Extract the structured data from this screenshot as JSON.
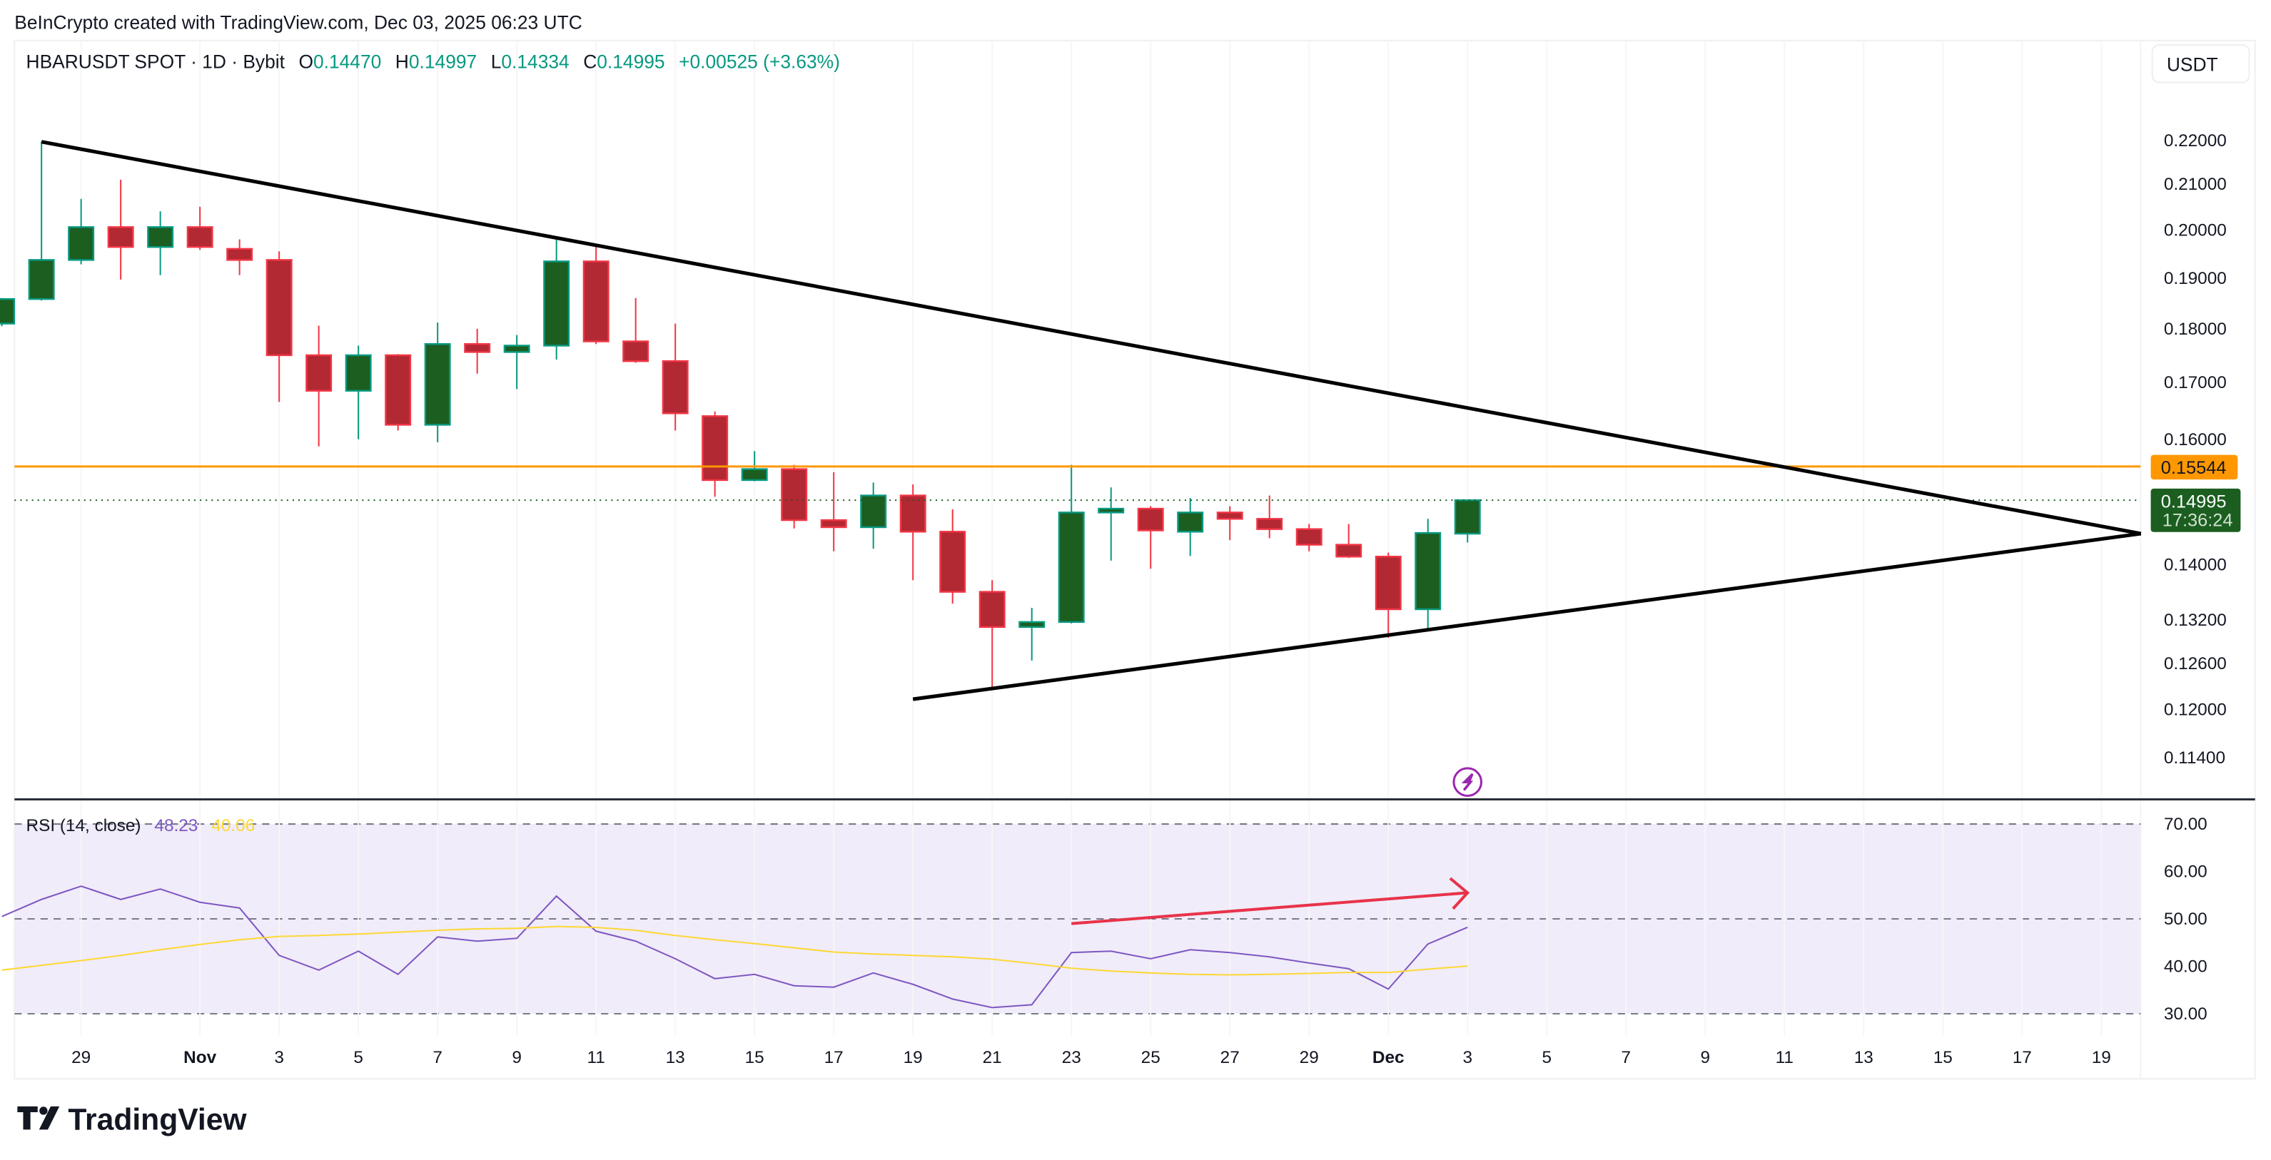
{
  "header": {
    "attribution": "BeInCrypto created with TradingView.com, Dec 03, 2025 06:23 UTC",
    "symbol": "HBARUSDT SPOT · 1D · Bybit",
    "o_label": "O",
    "o_value": "0.14470",
    "h_label": "H",
    "h_value": "0.14997",
    "l_label": "L",
    "l_value": "0.14334",
    "c_label": "C",
    "c_value": "0.14995",
    "change": "+0.00525 (+3.63%)"
  },
  "currency_button": "USDT",
  "logo_text": "TradingView",
  "colors": {
    "up_body": "#1b5e20",
    "up_border": "#089981",
    "down_body": "#b22833",
    "down_border": "#f23645",
    "resistance": "#ff9800",
    "rsi": "#7e57c2",
    "rsi_ma": "#fdd835",
    "rsi_band": "#f0ecf9",
    "arrow": "#e8334a",
    "trendline": "#000000",
    "event_icon": "#9c27b0"
  },
  "icons": {
    "event": "lightning-icon"
  },
  "chart_data": [
    {
      "type": "candlestick",
      "title": "HBARUSDT SPOT · 1D · Bybit",
      "y_scale": "log",
      "ylim": [
        0.111,
        0.238
      ],
      "y_ticks": [
        "0.22000",
        "0.21000",
        "0.20000",
        "0.19000",
        "0.18000",
        "0.17000",
        "0.16000",
        "0.14000",
        "0.13200",
        "0.12600",
        "0.12000",
        "0.11400"
      ],
      "x_ticks": [
        {
          "label": "29",
          "date": "2025-10-29"
        },
        {
          "label": "Nov",
          "date": "2025-11-01",
          "bold": true
        },
        {
          "label": "3",
          "date": "2025-11-03"
        },
        {
          "label": "5",
          "date": "2025-11-05"
        },
        {
          "label": "7",
          "date": "2025-11-07"
        },
        {
          "label": "9",
          "date": "2025-11-09"
        },
        {
          "label": "11",
          "date": "2025-11-11"
        },
        {
          "label": "13",
          "date": "2025-11-13"
        },
        {
          "label": "15",
          "date": "2025-11-15"
        },
        {
          "label": "17",
          "date": "2025-11-17"
        },
        {
          "label": "19",
          "date": "2025-11-19"
        },
        {
          "label": "21",
          "date": "2025-11-21"
        },
        {
          "label": "23",
          "date": "2025-11-23"
        },
        {
          "label": "25",
          "date": "2025-11-25"
        },
        {
          "label": "27",
          "date": "2025-11-27"
        },
        {
          "label": "29",
          "date": "2025-11-29"
        },
        {
          "label": "Dec",
          "date": "2025-12-01",
          "bold": true
        },
        {
          "label": "3",
          "date": "2025-12-03"
        },
        {
          "label": "5",
          "date": "2025-12-05"
        },
        {
          "label": "7",
          "date": "2025-12-07"
        },
        {
          "label": "9",
          "date": "2025-12-09"
        },
        {
          "label": "11",
          "date": "2025-12-11"
        },
        {
          "label": "13",
          "date": "2025-12-13"
        },
        {
          "label": "15",
          "date": "2025-12-15"
        },
        {
          "label": "17",
          "date": "2025-12-17"
        },
        {
          "label": "19",
          "date": "2025-12-19"
        }
      ],
      "candles_columns": [
        "date",
        "open",
        "high",
        "low",
        "close"
      ],
      "candles": [
        [
          "2025-10-27",
          0.181,
          0.186,
          0.1805,
          0.1858
        ],
        [
          "2025-10-28",
          0.1858,
          0.2197,
          0.1855,
          0.1937
        ],
        [
          "2025-10-29",
          0.1937,
          0.2067,
          0.1928,
          0.2006
        ],
        [
          "2025-10-30",
          0.2006,
          0.211,
          0.1897,
          0.1964
        ],
        [
          "2025-10-31",
          0.1964,
          0.204,
          0.1906,
          0.2006
        ],
        [
          "2025-11-01",
          0.2006,
          0.205,
          0.1958,
          0.1964
        ],
        [
          "2025-11-02",
          0.196,
          0.198,
          0.1906,
          0.1937
        ],
        [
          "2025-11-03",
          0.1937,
          0.1955,
          0.1665,
          0.175
        ],
        [
          "2025-11-04",
          0.175,
          0.1806,
          0.1588,
          0.1685
        ],
        [
          "2025-11-05",
          0.1685,
          0.1768,
          0.16,
          0.175
        ],
        [
          "2025-11-06",
          0.175,
          0.1752,
          0.1615,
          0.1625
        ],
        [
          "2025-11-07",
          0.1625,
          0.1812,
          0.1595,
          0.1771
        ],
        [
          "2025-11-08",
          0.1771,
          0.18,
          0.1716,
          0.1756
        ],
        [
          "2025-11-09",
          0.1756,
          0.1788,
          0.1688,
          0.1768
        ],
        [
          "2025-11-10",
          0.1768,
          0.198,
          0.1742,
          0.1934
        ],
        [
          "2025-11-11",
          0.1934,
          0.1964,
          0.1771,
          0.1776
        ],
        [
          "2025-11-12",
          0.1776,
          0.186,
          0.1736,
          0.1739
        ],
        [
          "2025-11-13",
          0.1739,
          0.181,
          0.1615,
          0.1645
        ],
        [
          "2025-11-14",
          0.164,
          0.1648,
          0.1505,
          0.1532
        ],
        [
          "2025-11-15",
          0.1532,
          0.158,
          0.153,
          0.155
        ],
        [
          "2025-11-16",
          0.155,
          0.1557,
          0.1455,
          0.1468
        ],
        [
          "2025-11-17",
          0.1468,
          0.1545,
          0.142,
          0.1457
        ],
        [
          "2025-11-18",
          0.1457,
          0.1528,
          0.1424,
          0.1507
        ],
        [
          "2025-11-19",
          0.1507,
          0.1525,
          0.1377,
          0.145
        ],
        [
          "2025-11-20",
          0.145,
          0.1485,
          0.1343,
          0.136
        ],
        [
          "2025-11-21",
          0.136,
          0.1377,
          0.1227,
          0.131
        ],
        [
          "2025-11-22",
          0.131,
          0.1337,
          0.1264,
          0.1317
        ],
        [
          "2025-11-23",
          0.1317,
          0.1557,
          0.1315,
          0.148
        ],
        [
          "2025-11-24",
          0.148,
          0.152,
          0.1406,
          0.1486
        ],
        [
          "2025-11-25",
          0.1486,
          0.149,
          0.1394,
          0.1452
        ],
        [
          "2025-11-26",
          0.145,
          0.1503,
          0.1413,
          0.148
        ],
        [
          "2025-11-27",
          0.148,
          0.149,
          0.1437,
          0.147
        ],
        [
          "2025-11-28",
          0.147,
          0.1507,
          0.144,
          0.1454
        ],
        [
          "2025-11-29",
          0.1454,
          0.1462,
          0.142,
          0.143
        ],
        [
          "2025-11-30",
          0.143,
          0.1462,
          0.141,
          0.1412
        ],
        [
          "2025-12-01",
          0.1412,
          0.1418,
          0.1295,
          0.1335
        ],
        [
          "2025-12-02",
          0.1335,
          0.147,
          0.1307,
          0.1448
        ],
        [
          "2025-12-03",
          0.1447,
          0.14997,
          0.14334,
          0.14995
        ]
      ],
      "horizontal_line": {
        "price": 0.15544,
        "label": "0.15544"
      },
      "last_price": {
        "price": 0.14995,
        "label": "0.14995",
        "countdown": "17:36:24"
      },
      "trendlines": [
        {
          "from": [
            "2025-10-28",
            0.2197
          ],
          "to": [
            "2025-12-20",
            0.1447
          ]
        },
        {
          "from": [
            "2025-11-19",
            0.1213
          ],
          "to": [
            "2025-12-20",
            0.1447
          ]
        }
      ],
      "event_marker_date": "2025-12-03"
    },
    {
      "type": "line",
      "title": "RSI (14, close)",
      "legend": [
        {
          "name": "RSI",
          "value": "48.23"
        },
        {
          "name": "RSI MA",
          "value": "40.06"
        }
      ],
      "ylim": [
        27,
        73
      ],
      "y_ticks": [
        "70.00",
        "60.00",
        "50.00",
        "40.00",
        "30.00"
      ],
      "band": [
        30,
        70
      ],
      "middle_line": 50,
      "start_date": "2025-10-27",
      "series": [
        {
          "values": [
            50.5,
            54.1,
            56.9,
            54.1,
            56.3,
            53.5,
            52.3,
            42.3,
            39.2,
            43.2,
            38.3,
            46.2,
            45.3,
            45.9,
            54.8,
            47.4,
            45.3,
            41.6,
            37.4,
            38.3,
            35.9,
            35.6,
            38.6,
            36.2,
            33.1,
            31.3,
            31.9,
            42.9,
            43.2,
            41.6,
            43.5,
            42.9,
            42.0,
            40.7,
            39.5,
            35.2,
            44.7,
            48.23
          ]
        },
        {
          "values": [
            39.2,
            40.2,
            41.2,
            42.3,
            43.5,
            44.6,
            45.6,
            46.3,
            46.5,
            46.8,
            47.2,
            47.6,
            47.9,
            48.0,
            48.4,
            48.2,
            47.6,
            46.5,
            45.6,
            44.8,
            43.9,
            43.0,
            42.6,
            42.3,
            42.0,
            41.5,
            40.6,
            39.6,
            39.0,
            38.6,
            38.3,
            38.2,
            38.3,
            38.5,
            38.7,
            38.7,
            39.4,
            40.06
          ]
        }
      ],
      "annotation_arrow": {
        "from": [
          "2025-11-23",
          49.0
        ],
        "to": [
          "2025-12-03",
          55.5
        ]
      }
    }
  ]
}
